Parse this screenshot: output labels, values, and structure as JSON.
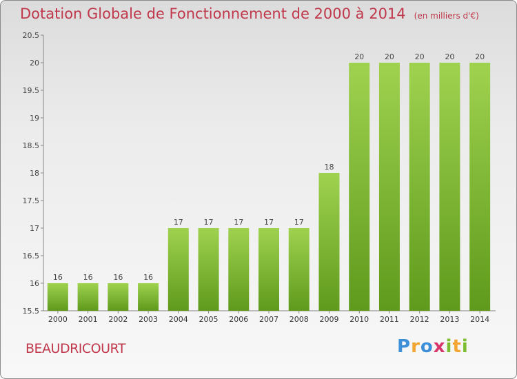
{
  "title": "Dotation Globale de Fonctionnement de 2000 à 2014",
  "subtitle": "(en milliers d'€)",
  "commune": "BEAUDRICOURT",
  "logo": {
    "text": "Proxiti",
    "colors": [
      "#3d8fd8",
      "#f2a531",
      "#7bbd2e",
      "#d6366a"
    ]
  },
  "chart_data": {
    "type": "bar",
    "categories": [
      "2000",
      "2001",
      "2002",
      "2003",
      "2004",
      "2005",
      "2006",
      "2007",
      "2008",
      "2009",
      "2010",
      "2011",
      "2012",
      "2013",
      "2014"
    ],
    "values": [
      16,
      16,
      16,
      16,
      17,
      17,
      17,
      17,
      17,
      18,
      20,
      20,
      20,
      20,
      20
    ],
    "value_labels": [
      "16",
      "16",
      "16",
      "16",
      "17",
      "17",
      "17",
      "17",
      "17",
      "18",
      "20",
      "20",
      "20",
      "20",
      "20"
    ],
    "ylim": [
      15.5,
      20.5
    ],
    "yticks": [
      "15.5",
      "16",
      "16.5",
      "17",
      "17.5",
      "18",
      "18.5",
      "19",
      "19.5",
      "20",
      "20.5"
    ],
    "grid": false,
    "bar_color": "#7ab532",
    "title_color": "#c0384b"
  }
}
